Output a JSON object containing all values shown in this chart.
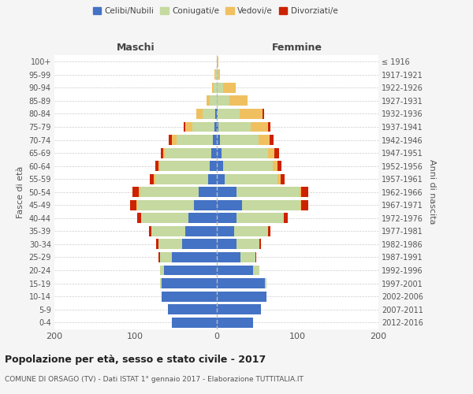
{
  "age_groups": [
    "0-4",
    "5-9",
    "10-14",
    "15-19",
    "20-24",
    "25-29",
    "30-34",
    "35-39",
    "40-44",
    "45-49",
    "50-54",
    "55-59",
    "60-64",
    "65-69",
    "70-74",
    "75-79",
    "80-84",
    "85-89",
    "90-94",
    "95-99",
    "100+"
  ],
  "birth_years": [
    "2012-2016",
    "2007-2011",
    "2002-2006",
    "1997-2001",
    "1992-1996",
    "1987-1991",
    "1982-1986",
    "1977-1981",
    "1972-1976",
    "1967-1971",
    "1962-1966",
    "1957-1961",
    "1952-1956",
    "1947-1951",
    "1942-1946",
    "1937-1941",
    "1932-1936",
    "1927-1931",
    "1922-1926",
    "1917-1921",
    "≤ 1916"
  ],
  "maschi": {
    "celibe": [
      55,
      60,
      68,
      68,
      65,
      55,
      42,
      38,
      35,
      28,
      22,
      10,
      8,
      6,
      4,
      2,
      1,
      0,
      0,
      0,
      0
    ],
    "coniugato": [
      0,
      0,
      0,
      2,
      5,
      15,
      30,
      42,
      58,
      70,
      72,
      65,
      62,
      58,
      45,
      28,
      16,
      8,
      3,
      1,
      0
    ],
    "vedovo": [
      0,
      0,
      0,
      0,
      0,
      0,
      0,
      0,
      0,
      1,
      2,
      2,
      2,
      2,
      6,
      8,
      8,
      4,
      2,
      1,
      0
    ],
    "divorziato": [
      0,
      0,
      0,
      0,
      0,
      2,
      2,
      3,
      5,
      8,
      8,
      5,
      3,
      3,
      4,
      2,
      0,
      0,
      0,
      0,
      0
    ]
  },
  "femmine": {
    "nubile": [
      45,
      55,
      62,
      60,
      45,
      30,
      25,
      22,
      25,
      32,
      25,
      10,
      8,
      6,
      4,
      2,
      1,
      0,
      0,
      0,
      0
    ],
    "coniugata": [
      0,
      0,
      0,
      2,
      8,
      18,
      28,
      42,
      58,
      72,
      78,
      65,
      62,
      58,
      48,
      40,
      28,
      16,
      8,
      2,
      0
    ],
    "vedova": [
      0,
      0,
      0,
      0,
      0,
      0,
      0,
      0,
      0,
      1,
      2,
      4,
      5,
      8,
      14,
      22,
      28,
      22,
      16,
      2,
      2
    ],
    "divorziata": [
      0,
      0,
      0,
      0,
      0,
      1,
      2,
      3,
      5,
      8,
      8,
      5,
      5,
      5,
      5,
      3,
      2,
      0,
      0,
      0,
      0
    ]
  },
  "colors": {
    "celibe": "#4472C4",
    "coniugato": "#c5d9a0",
    "vedovo": "#f0c060",
    "divorziato": "#cc2200"
  },
  "xlim": 200,
  "title": "Popolazione per età, sesso e stato civile - 2017",
  "subtitle": "COMUNE DI ORSAGO (TV) - Dati ISTAT 1° gennaio 2017 - Elaborazione TUTTITALIA.IT",
  "ylabel_left": "Fasce di età",
  "ylabel_right": "Anni di nascita",
  "legend_labels": [
    "Celibi/Nubili",
    "Coniugati/e",
    "Vedovi/e",
    "Divorziati/e"
  ],
  "bg_color": "#f5f5f5",
  "plot_bg": "#ffffff"
}
